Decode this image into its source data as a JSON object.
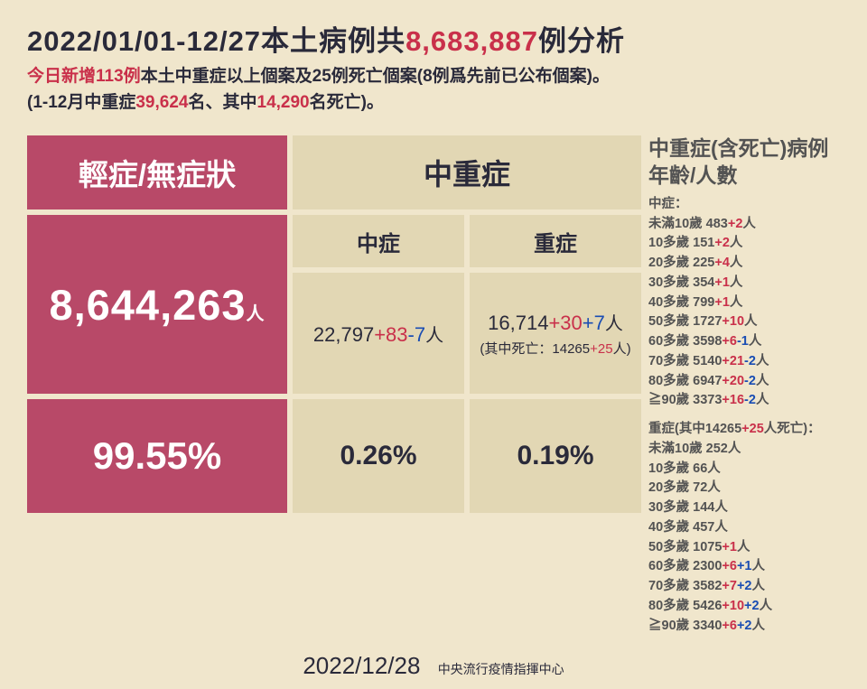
{
  "header": {
    "title_pre": "2022/01/01-12/27本土病例共",
    "title_num": "8,683,887",
    "title_post": "例分析",
    "sub_l1a": "今日新增113例",
    "sub_l1b": "本土中重症以上個案及25例死亡個案(8例爲先前已公布個案)。",
    "sub_l2a": "(1-12月中重症",
    "sub_l2_n1": "39,624",
    "sub_l2b": "名、其中",
    "sub_l2_n2": "14,290",
    "sub_l2c": "名死亡)。"
  },
  "table": {
    "mild": {
      "header": "輕症/無症狀",
      "count": "8,644,263",
      "count_unit": "人",
      "pct": "99.55%"
    },
    "severe": {
      "header": "中重症",
      "mid": {
        "label": "中症",
        "base": "22,797",
        "plus": "+83",
        "minus": "-7",
        "unit": "人",
        "pct": "0.26%"
      },
      "heavy": {
        "label": "重症",
        "base": "16,714",
        "plus": "+30",
        "extra": "+7",
        "unit": "人",
        "death_pre": "(其中死亡：14265",
        "death_plus": "+25",
        "death_post": "人)",
        "pct": "0.19%"
      }
    }
  },
  "right": {
    "heading": "中重症(含死亡)病例年齡/人數",
    "mid_label": "中症：",
    "mid_rows": [
      {
        "age": "未滿10歲",
        "n": "483",
        "r": "+2",
        "b": "",
        "u": "人"
      },
      {
        "age": "10多歲",
        "n": "151",
        "r": "+2",
        "b": "",
        "u": "人"
      },
      {
        "age": "20多歲",
        "n": "225",
        "r": "+4",
        "b": "",
        "u": "人"
      },
      {
        "age": "30多歲",
        "n": "354",
        "r": "+1",
        "b": "",
        "u": "人"
      },
      {
        "age": "40多歲",
        "n": "799",
        "r": "+1",
        "b": "",
        "u": "人"
      },
      {
        "age": "50多歲",
        "n": "1727",
        "r": "+10",
        "b": "",
        "u": "人"
      },
      {
        "age": "60多歲",
        "n": "3598",
        "r": "+6",
        "b": "-1",
        "u": "人"
      },
      {
        "age": "70多歲",
        "n": "5140",
        "r": "+21",
        "b": "-2",
        "u": "人"
      },
      {
        "age": "80多歲",
        "n": "6947",
        "r": "+20",
        "b": "-2",
        "u": "人"
      },
      {
        "age": "≧90歲",
        "n": "3373",
        "r": "+16",
        "b": "-2",
        "u": "人"
      }
    ],
    "heavy_label_pre": "重症(其中14265",
    "heavy_label_r": "+25",
    "heavy_label_post": "人死亡)：",
    "heavy_rows": [
      {
        "age": "未滿10歲",
        "n": "252",
        "r": "",
        "b": "",
        "u": "人"
      },
      {
        "age": "10多歲",
        "n": "66",
        "r": "",
        "b": "",
        "u": "人"
      },
      {
        "age": "20多歲",
        "n": "72",
        "r": "",
        "b": "",
        "u": "人"
      },
      {
        "age": "30多歲",
        "n": "144",
        "r": "",
        "b": "",
        "u": "人"
      },
      {
        "age": "40多歲",
        "n": "457",
        "r": "",
        "b": "",
        "u": "人"
      },
      {
        "age": "50多歲",
        "n": "1075",
        "r": "+1",
        "b": "",
        "u": "人"
      },
      {
        "age": "60多歲",
        "n": "2300",
        "r": "+6",
        "b": "+1",
        "u": "人"
      },
      {
        "age": "70多歲",
        "n": "3582",
        "r": "+7",
        "b": "+2",
        "u": "人"
      },
      {
        "age": "80多歲",
        "n": "5426",
        "r": "+10",
        "b": "+2",
        "u": "人"
      },
      {
        "age": "≧90歲",
        "n": "3340",
        "r": "+6",
        "b": "+2",
        "u": "人"
      }
    ]
  },
  "footer": {
    "date": "2022/12/28",
    "source": "中央流行疫情指揮中心"
  },
  "colors": {
    "bg": "#f0e6cc",
    "pink": "#b84968",
    "tan": "#e2d7b4",
    "red": "#c9304a",
    "blue": "#1a4db3",
    "text": "#2a2a3a"
  }
}
